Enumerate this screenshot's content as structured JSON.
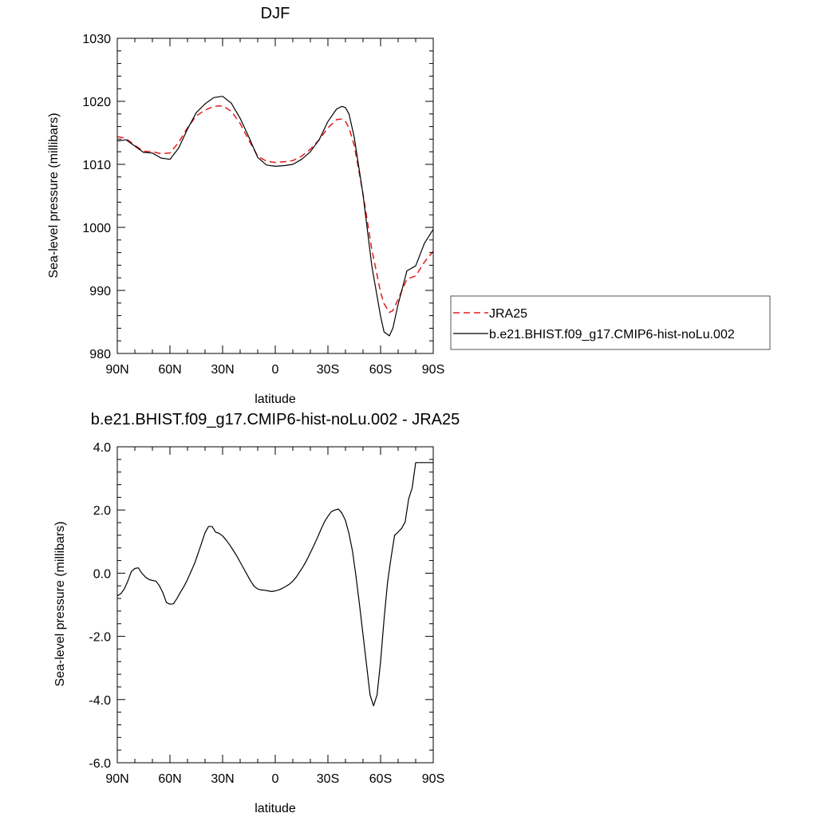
{
  "chart_data": [
    {
      "type": "line",
      "title": "DJF",
      "xlabel": "latitude",
      "ylabel": "Sea-level pressure (millibars)",
      "xlim": [
        90,
        -90
      ],
      "ylim": [
        980,
        1030
      ],
      "x_ticks": [
        {
          "value": 90,
          "label": "90N"
        },
        {
          "value": 60,
          "label": "60N"
        },
        {
          "value": 30,
          "label": "30N"
        },
        {
          "value": 0,
          "label": "0"
        },
        {
          "value": -30,
          "label": "30S"
        },
        {
          "value": -60,
          "label": "60S"
        },
        {
          "value": -90,
          "label": "90S"
        }
      ],
      "y_ticks": [
        {
          "value": 980,
          "label": "980"
        },
        {
          "value": 990,
          "label": "990"
        },
        {
          "value": 1000,
          "label": "1000"
        },
        {
          "value": 1010,
          "label": "1010"
        },
        {
          "value": 1020,
          "label": "1020"
        },
        {
          "value": 1030,
          "label": "1030"
        }
      ],
      "legend": {
        "placement": "right",
        "entries": [
          {
            "name": "JRA25",
            "color": "#e41a1c",
            "dash": "dashed"
          },
          {
            "name": "b.e21.BHIST.f09_g17.CMIP6-hist-noLu.002",
            "color": "#000000",
            "dash": "solid"
          }
        ]
      },
      "series": [
        {
          "name": "JRA25",
          "color": "#e41a1c",
          "dash": "dashed",
          "x": [
            90,
            85,
            80,
            75,
            70,
            65,
            60,
            55,
            50,
            45,
            40,
            35,
            30,
            25,
            20,
            15,
            10,
            5,
            0,
            -5,
            -10,
            -15,
            -20,
            -25,
            -30,
            -35,
            -38,
            -40,
            -42,
            -45,
            -50,
            -55,
            -60,
            -62,
            -65,
            -67,
            -70,
            -75,
            -80,
            -85,
            -90
          ],
          "y": [
            1014.4,
            1014.1,
            1013.0,
            1012.1,
            1012.0,
            1011.7,
            1011.8,
            1013.5,
            1015.8,
            1017.7,
            1018.6,
            1019.2,
            1019.3,
            1018.4,
            1016.5,
            1013.8,
            1011.3,
            1010.5,
            1010.3,
            1010.4,
            1010.6,
            1011.3,
            1012.4,
            1013.9,
            1015.8,
            1017.1,
            1017.2,
            1016.8,
            1015.8,
            1013.0,
            1005.3,
            996.5,
            989.7,
            987.9,
            986.5,
            986.8,
            988.6,
            991.8,
            992.3,
            994.5,
            996.2
          ]
        },
        {
          "name": "b.e21.BHIST.f09_g17.CMIP6-hist-noLu.002",
          "color": "#000000",
          "dash": "solid",
          "x": [
            90,
            85,
            80,
            75,
            70,
            65,
            60,
            55,
            50,
            45,
            40,
            35,
            30,
            25,
            20,
            15,
            10,
            5,
            0,
            -5,
            -10,
            -15,
            -20,
            -25,
            -30,
            -35,
            -38,
            -40,
            -42,
            -45,
            -50,
            -55,
            -60,
            -62,
            -65,
            -67,
            -70,
            -75,
            -80,
            -85,
            -90
          ],
          "y": [
            1013.7,
            1013.9,
            1012.9,
            1011.9,
            1011.8,
            1011.0,
            1010.8,
            1012.6,
            1015.6,
            1018.2,
            1019.6,
            1020.6,
            1020.8,
            1019.7,
            1017.3,
            1014.3,
            1011.1,
            1009.9,
            1009.7,
            1009.8,
            1010.0,
            1010.8,
            1012.0,
            1013.9,
            1016.8,
            1018.8,
            1019.2,
            1019.0,
            1018.0,
            1014.3,
            1005.2,
            993.9,
            985.9,
            983.4,
            982.8,
            984.0,
            987.8,
            993.1,
            993.9,
            997.5,
            999.7
          ]
        }
      ]
    },
    {
      "type": "line",
      "title": "b.e21.BHIST.f09_g17.CMIP6-hist-noLu.002 - JRA25",
      "xlabel": "latitude",
      "ylabel": "Sea-level pressure (millibars)",
      "xlim": [
        90,
        -90
      ],
      "ylim": [
        -6.0,
        4.0
      ],
      "x_ticks": [
        {
          "value": 90,
          "label": "90N"
        },
        {
          "value": 60,
          "label": "60N"
        },
        {
          "value": 30,
          "label": "30N"
        },
        {
          "value": 0,
          "label": "0"
        },
        {
          "value": -30,
          "label": "30S"
        },
        {
          "value": -60,
          "label": "60S"
        },
        {
          "value": -90,
          "label": "90S"
        }
      ],
      "y_ticks": [
        {
          "value": -6,
          "label": "-6.0"
        },
        {
          "value": -4,
          "label": "-4.0"
        },
        {
          "value": -2,
          "label": "-2.0"
        },
        {
          "value": 0,
          "label": "0.0"
        },
        {
          "value": 2,
          "label": "2.0"
        },
        {
          "value": 4,
          "label": "4.0"
        }
      ],
      "series": [
        {
          "color": "#000000",
          "dash": "solid",
          "x": [
            90,
            88,
            86,
            84,
            82,
            80,
            78,
            76,
            74,
            72,
            70,
            68,
            66,
            64,
            62,
            60,
            58,
            56,
            54,
            52,
            50,
            48,
            46,
            44,
            42,
            40,
            38,
            36,
            34,
            32,
            30,
            28,
            26,
            24,
            22,
            20,
            18,
            16,
            14,
            12,
            10,
            8,
            6,
            4,
            2,
            0,
            -2,
            -4,
            -6,
            -8,
            -10,
            -12,
            -14,
            -16,
            -18,
            -20,
            -22,
            -24,
            -26,
            -28,
            -30,
            -32,
            -34,
            -36,
            -38,
            -40,
            -42,
            -44,
            -46,
            -48,
            -50,
            -52,
            -54,
            -56,
            -58,
            -60,
            -62,
            -64,
            -66,
            -68,
            -70,
            -72,
            -74,
            -76,
            -78,
            -80,
            -82,
            -84,
            -86,
            -88,
            -90
          ],
          "y": [
            -0.72,
            -0.65,
            -0.5,
            -0.25,
            0.05,
            0.15,
            0.17,
            0.0,
            -0.12,
            -0.2,
            -0.23,
            -0.25,
            -0.4,
            -0.62,
            -0.93,
            -0.98,
            -0.97,
            -0.8,
            -0.6,
            -0.42,
            -0.2,
            0.05,
            0.3,
            0.62,
            0.95,
            1.28,
            1.48,
            1.48,
            1.3,
            1.26,
            1.18,
            1.05,
            0.9,
            0.73,
            0.55,
            0.35,
            0.15,
            -0.05,
            -0.25,
            -0.42,
            -0.5,
            -0.53,
            -0.54,
            -0.56,
            -0.58,
            -0.56,
            -0.53,
            -0.48,
            -0.42,
            -0.35,
            -0.25,
            -0.12,
            0.05,
            0.22,
            0.42,
            0.65,
            0.88,
            1.12,
            1.38,
            1.62,
            1.8,
            1.95,
            2.0,
            2.03,
            1.9,
            1.67,
            1.25,
            0.7,
            -0.1,
            -1.0,
            -1.95,
            -2.9,
            -3.85,
            -4.2,
            -3.85,
            -2.8,
            -1.45,
            -0.28,
            0.5,
            1.2,
            1.3,
            1.42,
            1.62,
            2.35,
            2.7,
            3.5,
            3.5,
            3.5,
            3.5,
            3.5,
            3.5
          ]
        }
      ]
    }
  ]
}
